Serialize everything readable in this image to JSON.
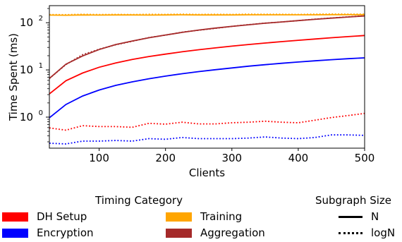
{
  "chart_data": {
    "type": "line",
    "xlabel": "Clients",
    "ylabel": "Time Spent (ms)",
    "y_scale": "log",
    "xlim": [
      25,
      500
    ],
    "ylim": [
      0.22,
      230
    ],
    "x_ticks": [
      100,
      200,
      300,
      400,
      500
    ],
    "x_tick_labels": [
      "100",
      "200",
      "300",
      "400",
      "500"
    ],
    "y_ticks": [
      1,
      10,
      100
    ],
    "x": [
      25,
      50,
      75,
      100,
      125,
      150,
      175,
      200,
      225,
      250,
      275,
      300,
      325,
      350,
      375,
      400,
      425,
      450,
      475,
      500
    ],
    "series": [
      {
        "category": "DH Setup",
        "size": "N",
        "color": "#ff0000",
        "style": "solid",
        "values": [
          3.1,
          5.9,
          8.6,
          11.4,
          14.0,
          16.7,
          19.2,
          21.6,
          24.2,
          26.8,
          29.3,
          31.9,
          34.5,
          37.1,
          39.8,
          42.5,
          45.2,
          48.0,
          50.8,
          53.6
        ]
      },
      {
        "category": "DH Setup",
        "size": "logN",
        "color": "#ff0000",
        "style": "dotted",
        "values": [
          0.59,
          0.53,
          0.66,
          0.63,
          0.63,
          0.61,
          0.74,
          0.71,
          0.78,
          0.72,
          0.72,
          0.76,
          0.78,
          0.82,
          0.78,
          0.76,
          0.86,
          0.98,
          1.08,
          1.2
        ]
      },
      {
        "category": "Encryption",
        "size": "N",
        "color": "#0000ff",
        "style": "solid",
        "values": [
          0.97,
          1.85,
          2.8,
          3.75,
          4.7,
          5.6,
          6.5,
          7.4,
          8.3,
          9.2,
          10.1,
          11.0,
          12.0,
          12.9,
          13.8,
          14.7,
          15.6,
          16.5,
          17.3,
          18.0
        ]
      },
      {
        "category": "Encryption",
        "size": "logN",
        "color": "#0000ff",
        "style": "dotted",
        "values": [
          0.28,
          0.27,
          0.31,
          0.31,
          0.32,
          0.31,
          0.35,
          0.34,
          0.37,
          0.35,
          0.35,
          0.35,
          0.36,
          0.38,
          0.36,
          0.35,
          0.37,
          0.42,
          0.42,
          0.41
        ]
      },
      {
        "category": "Training",
        "size": "N",
        "color": "#ffa500",
        "style": "solid",
        "values": [
          145,
          144,
          146,
          145,
          146,
          146,
          145,
          146,
          147,
          146,
          146,
          146,
          147,
          147,
          147,
          147,
          147,
          148,
          148,
          148
        ]
      },
      {
        "category": "Training",
        "size": "logN",
        "color": "#ffa500",
        "style": "dotted",
        "values": [
          149,
          148,
          151,
          149,
          150,
          149,
          151,
          150,
          152,
          150,
          151,
          150,
          152,
          151,
          151,
          150,
          152,
          153,
          152,
          152
        ]
      },
      {
        "category": "Aggregation",
        "size": "N",
        "color": "#a52a2a",
        "style": "solid",
        "values": [
          6.6,
          13.2,
          19.8,
          27.0,
          34.5,
          41.0,
          48.0,
          55.0,
          62.5,
          70.0,
          77.0,
          83.5,
          90.5,
          97.5,
          104,
          111,
          118,
          125,
          132,
          139
        ]
      },
      {
        "category": "Aggregation",
        "size": "logN",
        "color": "#a52a2a",
        "style": "dotted",
        "values": [
          6.6,
          13.0,
          21.0,
          27.5,
          34.0,
          40.5,
          48.5,
          54.5,
          63.0,
          69.5,
          76.0,
          84.0,
          91.0,
          98.0,
          104,
          111,
          119,
          126,
          133,
          140
        ]
      }
    ]
  },
  "legend_timing": {
    "title": "Timing Category",
    "items": [
      {
        "label": "DH Setup",
        "color": "#ff0000"
      },
      {
        "label": "Training",
        "color": "#ffa500"
      },
      {
        "label": "Encryption",
        "color": "#0000ff"
      },
      {
        "label": "Aggregation",
        "color": "#a52a2a"
      }
    ]
  },
  "legend_size": {
    "title": "Subgraph Size",
    "items": [
      {
        "label": "N",
        "style": "solid"
      },
      {
        "label": "logN",
        "style": "dotted"
      }
    ]
  }
}
